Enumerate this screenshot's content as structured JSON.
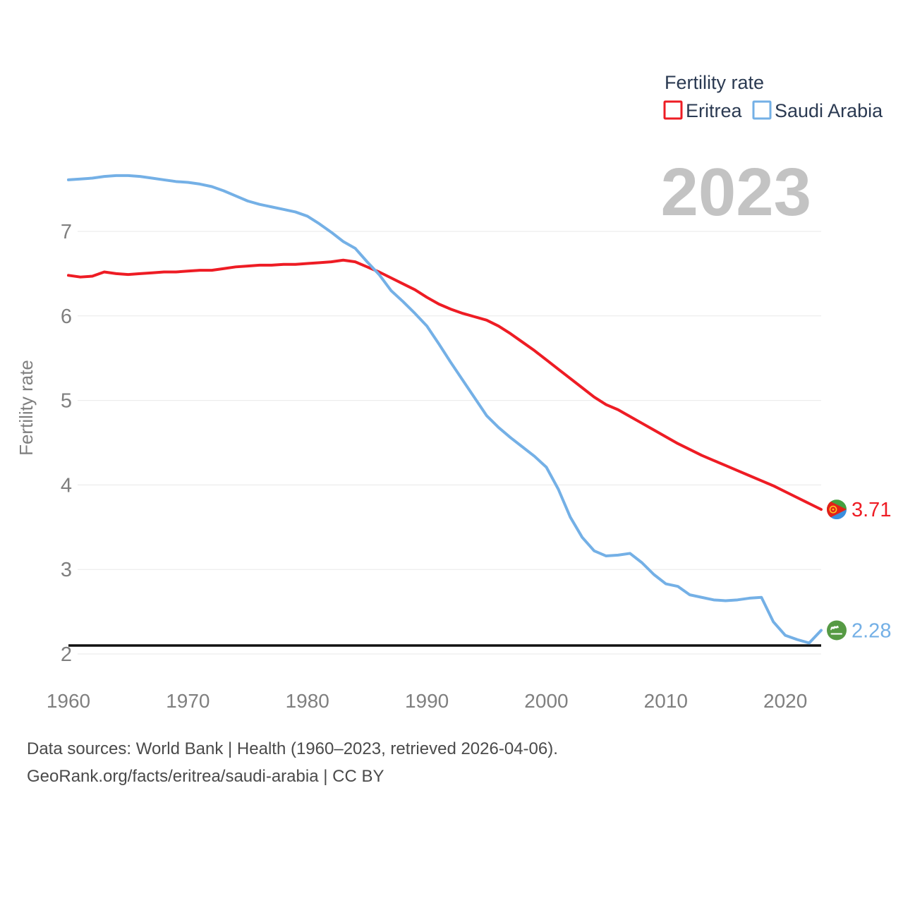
{
  "legend": {
    "title": "Fertility rate",
    "items": [
      {
        "label": "Eritrea",
        "color": "#ee1c24"
      },
      {
        "label": "Saudi Arabia",
        "color": "#74b0e6"
      }
    ]
  },
  "watermark": "2023",
  "footer": {
    "line1": "Data sources: World Bank | Health (1960–2023, retrieved 2026-04-06).",
    "line2": "GeoRank.org/facts/eritrea/saudi-arabia | CC BY"
  },
  "chart_data": {
    "type": "line",
    "title": "Fertility rate",
    "xlabel": "",
    "ylabel": "Fertility rate",
    "x_start": 1960,
    "x_end": 2023,
    "xticks": [
      1960,
      1970,
      1980,
      1990,
      2000,
      2010,
      2020
    ],
    "yticks": [
      2,
      3,
      4,
      5,
      6,
      7
    ],
    "ylim": [
      1.95,
      7.85
    ],
    "grid": "horizontal",
    "legend_position": "top-right",
    "replacement_level": 2.1,
    "series": [
      {
        "name": "Eritrea",
        "color": "#ee1c24",
        "end_label": "3.71",
        "flag": "eritrea",
        "values": [
          6.48,
          6.46,
          6.47,
          6.52,
          6.5,
          6.49,
          6.5,
          6.51,
          6.52,
          6.52,
          6.53,
          6.54,
          6.54,
          6.56,
          6.58,
          6.59,
          6.6,
          6.6,
          6.61,
          6.61,
          6.62,
          6.63,
          6.64,
          6.66,
          6.64,
          6.58,
          6.52,
          6.45,
          6.38,
          6.31,
          6.22,
          6.14,
          6.08,
          6.03,
          5.99,
          5.95,
          5.88,
          5.79,
          5.69,
          5.59,
          5.48,
          5.37,
          5.26,
          5.15,
          5.04,
          4.95,
          4.89,
          4.81,
          4.73,
          4.65,
          4.57,
          4.49,
          4.42,
          4.35,
          4.29,
          4.23,
          4.17,
          4.11,
          4.05,
          3.99,
          3.92,
          3.85,
          3.78,
          3.71
        ]
      },
      {
        "name": "Saudi Arabia",
        "color": "#74b0e6",
        "end_label": "2.28",
        "flag": "saudi-arabia",
        "values": [
          7.61,
          7.62,
          7.63,
          7.65,
          7.66,
          7.66,
          7.65,
          7.63,
          7.61,
          7.59,
          7.58,
          7.56,
          7.53,
          7.48,
          7.42,
          7.36,
          7.32,
          7.29,
          7.26,
          7.23,
          7.18,
          7.09,
          6.99,
          6.88,
          6.8,
          6.64,
          6.49,
          6.3,
          6.17,
          6.03,
          5.88,
          5.67,
          5.45,
          5.24,
          5.03,
          4.82,
          4.68,
          4.56,
          4.45,
          4.34,
          4.21,
          3.95,
          3.62,
          3.38,
          3.22,
          3.16,
          3.17,
          3.19,
          3.08,
          2.94,
          2.83,
          2.8,
          2.7,
          2.67,
          2.64,
          2.63,
          2.64,
          2.66,
          2.67,
          2.38,
          2.22,
          2.17,
          2.13,
          2.28
        ]
      }
    ]
  }
}
